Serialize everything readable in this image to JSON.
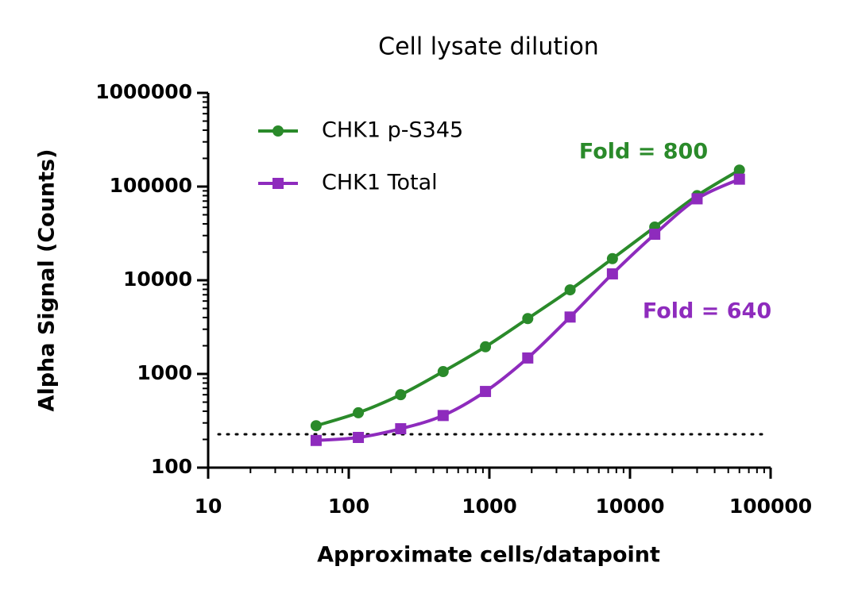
{
  "chart_data": {
    "type": "line",
    "title": "Cell lysate dilution",
    "x_label": "Approximate cells/datapoint",
    "y_label": "Alpha Signal (Counts)",
    "x": [
      58.6,
      117,
      234,
      469,
      938,
      1875,
      3750,
      7500,
      15000,
      30000,
      60000
    ],
    "series": [
      {
        "name": "CHK1 p-S345",
        "color": "#2a8a2a",
        "marker": "circle",
        "values": [
          280,
          385,
          600,
          1060,
          1950,
          3900,
          7900,
          17000,
          37000,
          80000,
          150000
        ]
      },
      {
        "name": "CHK1 Total",
        "color": "#8e2bbd",
        "marker": "square",
        "values": [
          195,
          210,
          260,
          360,
          650,
          1480,
          4050,
          11700,
          31000,
          74000,
          120000
        ]
      }
    ],
    "reference_line": 227,
    "annotations": [
      {
        "text": "Fold = 800",
        "color": "#2a8a2a"
      },
      {
        "text": "Fold = 640",
        "color": "#8e2bbd"
      }
    ],
    "xscale": "log",
    "yscale": "log",
    "xlim": [
      10,
      100000
    ],
    "ylim": [
      100,
      1000000
    ],
    "xticks": [
      10,
      100,
      1000,
      10000,
      100000
    ],
    "yticks": [
      100,
      1000,
      10000,
      100000,
      1000000
    ],
    "legend": "upper left"
  }
}
